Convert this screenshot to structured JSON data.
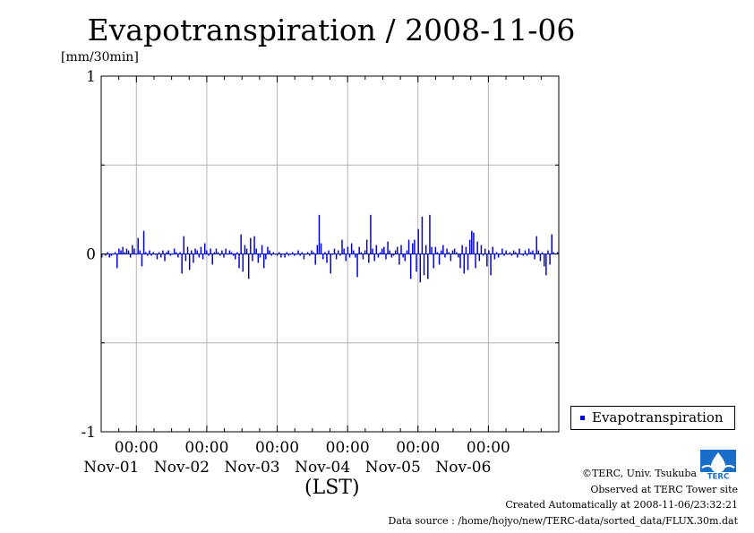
{
  "chart_data": {
    "type": "bar",
    "title": "Evapotranspiration / 2008-11-06",
    "ylabel": "[mm/30min]",
    "xlabel": "(LST)",
    "ylim": [
      -1,
      1
    ],
    "yticks": [
      -1,
      0,
      1
    ],
    "ytick_labels": [
      "-1",
      "0",
      "1"
    ],
    "x_start": "2008-10-31 12:00",
    "x_end": "2008-11-06 24:00",
    "xticks": [
      {
        "time": "00:00",
        "date": "Nov-01"
      },
      {
        "time": "00:00",
        "date": "Nov-02"
      },
      {
        "time": "00:00",
        "date": "Nov-03"
      },
      {
        "time": "00:00",
        "date": "Nov-04"
      },
      {
        "time": "00:00",
        "date": "Nov-05"
      },
      {
        "time": "00:00",
        "date": "Nov-06"
      }
    ],
    "grid": true,
    "legend_position": "right",
    "series": [
      {
        "name": "Evapotranspiration",
        "color": "#0000cc",
        "interval": "30min",
        "values": [
          -0.02,
          0.0,
          -0.01,
          0.01,
          -0.02,
          -0.01,
          0.0,
          0.01,
          -0.08,
          0.03,
          0.02,
          0.04,
          0.01,
          0.03,
          0.02,
          -0.02,
          0.05,
          0.03,
          0.0,
          0.09,
          0.02,
          -0.07,
          0.13,
          0.01,
          -0.01,
          0.02,
          -0.01,
          0.01,
          0.0,
          -0.03,
          0.01,
          -0.02,
          0.02,
          -0.04,
          0.01,
          0.02,
          -0.01,
          0.0,
          0.03,
          0.01,
          -0.02,
          0.01,
          -0.11,
          0.1,
          -0.04,
          0.04,
          -0.09,
          0.02,
          -0.05,
          0.03,
          0.02,
          -0.02,
          0.04,
          -0.03,
          0.06,
          0.02,
          -0.01,
          0.03,
          -0.06,
          0.01,
          0.03,
          0.01,
          -0.01,
          0.02,
          -0.02,
          0.03,
          0.0,
          0.02,
          0.01,
          -0.01,
          -0.03,
          0.01,
          -0.08,
          0.11,
          -0.1,
          0.05,
          0.03,
          -0.14,
          0.09,
          -0.04,
          0.1,
          0.03,
          -0.05,
          -0.02,
          0.05,
          -0.08,
          -0.03,
          0.04,
          0.02,
          -0.01,
          0.01,
          0.0,
          -0.01,
          0.01,
          -0.02,
          0.0,
          -0.02,
          0.01,
          -0.01,
          0.0,
          0.01,
          -0.01,
          0.0,
          0.02,
          -0.01,
          0.01,
          -0.03,
          0.0,
          0.01,
          -0.01,
          0.02,
          0.01,
          -0.06,
          0.05,
          0.22,
          0.06,
          -0.03,
          0.01,
          -0.05,
          0.02,
          -0.11,
          0.0,
          0.03,
          -0.03,
          0.02,
          -0.01,
          0.08,
          0.03,
          -0.04,
          0.04,
          -0.02,
          0.06,
          0.02,
          -0.02,
          -0.13,
          0.04,
          0.01,
          -0.03,
          0.02,
          0.08,
          -0.05,
          0.22,
          0.03,
          -0.04,
          0.05,
          -0.02,
          0.01,
          0.03,
          0.04,
          -0.03,
          0.07,
          0.02,
          -0.02,
          -0.01,
          0.02,
          0.04,
          -0.06,
          0.05,
          -0.02,
          -0.04,
          0.02,
          0.08,
          -0.14,
          0.06,
          0.08,
          -0.1,
          0.14,
          -0.16,
          0.21,
          -0.12,
          0.05,
          -0.14,
          0.22,
          0.04,
          -0.08,
          0.04,
          0.01,
          -0.06,
          0.02,
          0.05,
          -0.02,
          0.03,
          0.01,
          -0.04,
          0.02,
          0.03,
          0.01,
          -0.02,
          -0.08,
          0.05,
          -0.11,
          0.04,
          -0.09,
          0.08,
          0.13,
          0.12,
          -0.08,
          0.07,
          -0.04,
          0.05,
          -0.01,
          0.03,
          -0.07,
          0.02,
          -0.12,
          0.04,
          -0.03,
          0.01,
          -0.02,
          0.0,
          0.03,
          -0.01,
          0.02,
          0.0,
          0.01,
          -0.01,
          0.02,
          0.01,
          -0.02,
          0.03,
          0.0,
          -0.01,
          0.02,
          -0.01,
          0.03,
          0.01,
          0.02,
          -0.03,
          0.1,
          0.02,
          -0.04,
          0.01,
          -0.07,
          -0.12,
          0.02,
          -0.06,
          0.11,
          0.01,
          0.0,
          0.01
        ]
      }
    ]
  },
  "credits": {
    "copyright": "©TERC, Univ. Tsukuba",
    "observed": "Observed at TERC Tower site",
    "created": "Created Automatically at 2008-11-06/23:32:21",
    "source": "Data source : /home/hojyo/new/TERC-data/sorted_data/FLUX.30m.dat"
  },
  "logo": {
    "text": "TERC",
    "icon": "terc-logo-icon",
    "color": "#1a6ec8"
  }
}
